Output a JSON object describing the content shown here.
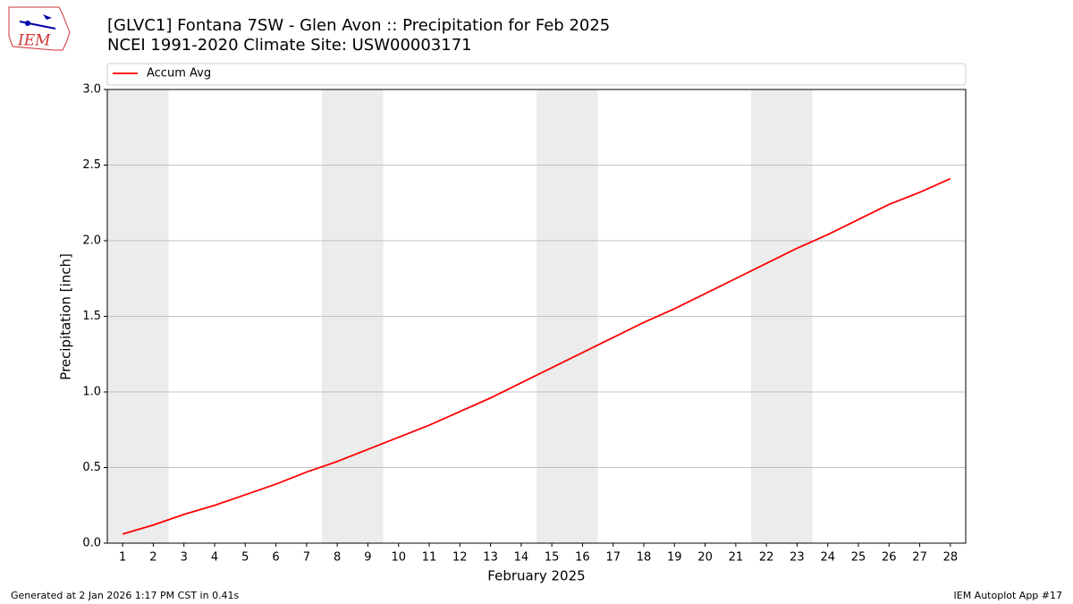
{
  "chart_data": {
    "type": "line",
    "title": "[GLVC1] Fontana 7SW - Glen Avon :: Precipitation for Feb 2025",
    "subtitle": "NCEI 1991-2020 Climate Site: USW00003171",
    "x_label": "February 2025",
    "y_label": "Precipitation [inch]",
    "x": [
      1,
      2,
      3,
      4,
      5,
      6,
      7,
      8,
      9,
      10,
      11,
      12,
      13,
      14,
      15,
      16,
      17,
      18,
      19,
      20,
      21,
      22,
      23,
      24,
      25,
      26,
      27,
      28
    ],
    "series": [
      {
        "name": "Accum Avg",
        "color": "#ff0000",
        "values": [
          0.06,
          0.12,
          0.19,
          0.25,
          0.32,
          0.39,
          0.47,
          0.54,
          0.62,
          0.7,
          0.78,
          0.87,
          0.96,
          1.06,
          1.16,
          1.26,
          1.36,
          1.46,
          1.55,
          1.65,
          1.75,
          1.85,
          1.95,
          2.04,
          2.14,
          2.24,
          2.32,
          2.41
        ]
      }
    ],
    "weekend_spans": [
      [
        0.5,
        2.5
      ],
      [
        7.5,
        9.5
      ],
      [
        14.5,
        16.5
      ],
      [
        21.5,
        23.5
      ]
    ],
    "span_color": "#ececec",
    "xlim": [
      0.5,
      28.5
    ],
    "xticks": [
      1,
      2,
      3,
      4,
      5,
      6,
      7,
      8,
      9,
      10,
      11,
      12,
      13,
      14,
      15,
      16,
      17,
      18,
      19,
      20,
      21,
      22,
      23,
      24,
      25,
      26,
      27,
      28
    ],
    "ylim": [
      0,
      3
    ],
    "yticks": [
      {
        "value": 0,
        "label": "0.0"
      },
      0.5,
      {
        "value": 1,
        "label": "1.0"
      },
      1.5,
      {
        "value": 2,
        "label": "2.0"
      },
      2.5,
      {
        "value": 3,
        "label": "3.0"
      }
    ],
    "grid": true,
    "legend": "top"
  },
  "logo_text": "IEM",
  "footer_left": "Generated at 2 Jan 2026 1:17 PM CST in 0.41s",
  "footer_right": "IEM Autoplot App #17"
}
